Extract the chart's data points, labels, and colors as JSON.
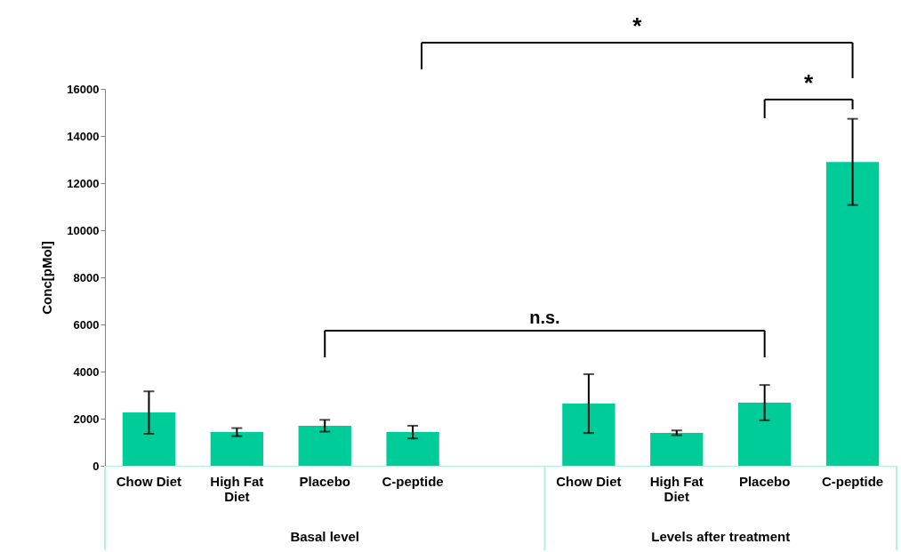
{
  "chart_data": {
    "type": "bar",
    "ylabel": "Conc[pMol]",
    "categories": [
      "Chow Diet",
      "High Fat Diet",
      "Placebo",
      "C-peptide",
      null,
      "Chow Diet",
      "High Fat Diet",
      "Placebo",
      "C-peptide"
    ],
    "values": [
      2260,
      1430,
      1700,
      1430,
      null,
      2640,
      1400,
      2680,
      12900
    ],
    "errors": [
      900,
      170,
      250,
      270,
      null,
      1250,
      100,
      750,
      1830
    ],
    "color": "#00cc99",
    "ylim": [
      0,
      16000
    ],
    "yticks": [
      0,
      2000,
      4000,
      6000,
      8000,
      10000,
      12000,
      14000,
      16000
    ],
    "grid": false,
    "annotations": [
      "n.s.",
      "*",
      "*",
      "Basal level",
      "Levels after treatment"
    ]
  }
}
